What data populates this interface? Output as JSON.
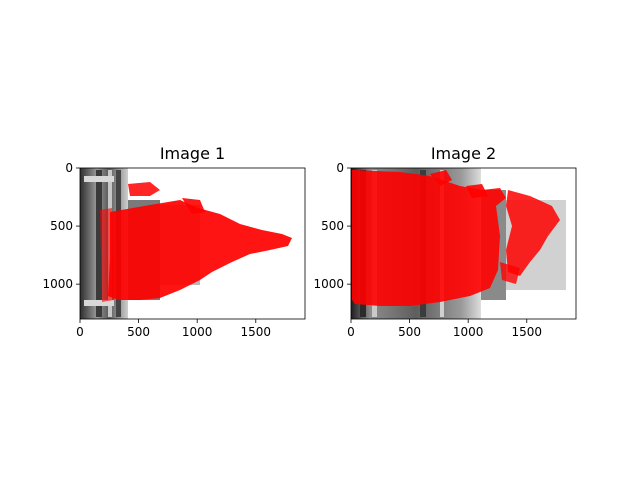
{
  "figure": {
    "background": "#ffffff"
  },
  "chart_data": [
    {
      "type": "image",
      "title": "Image 1",
      "x_ticks": [
        "0",
        "500",
        "1000",
        "1500"
      ],
      "y_ticks": [
        "0",
        "500",
        "1000"
      ],
      "xlim": [
        0,
        1920
      ],
      "ylim": [
        1300,
        0
      ],
      "image_size": [
        1920,
        1300
      ],
      "photo_extent_x": [
        0,
        410
      ],
      "overlay_color": "#ff0000",
      "overlay_description": "dense red keypoint markers over grayscale building (rotated view)"
    },
    {
      "type": "image",
      "title": "Image 2",
      "x_ticks": [
        "0",
        "500",
        "1000",
        "1500"
      ],
      "y_ticks": [
        "0",
        "500",
        "1000"
      ],
      "xlim": [
        0,
        1920
      ],
      "ylim": [
        1300,
        0
      ],
      "image_size": [
        1920,
        1300
      ],
      "photo_extent_x": [
        0,
        1200
      ],
      "overlay_color": "#ff0000",
      "overlay_description": "dense red keypoint markers over grayscale building (rotated view)"
    }
  ]
}
